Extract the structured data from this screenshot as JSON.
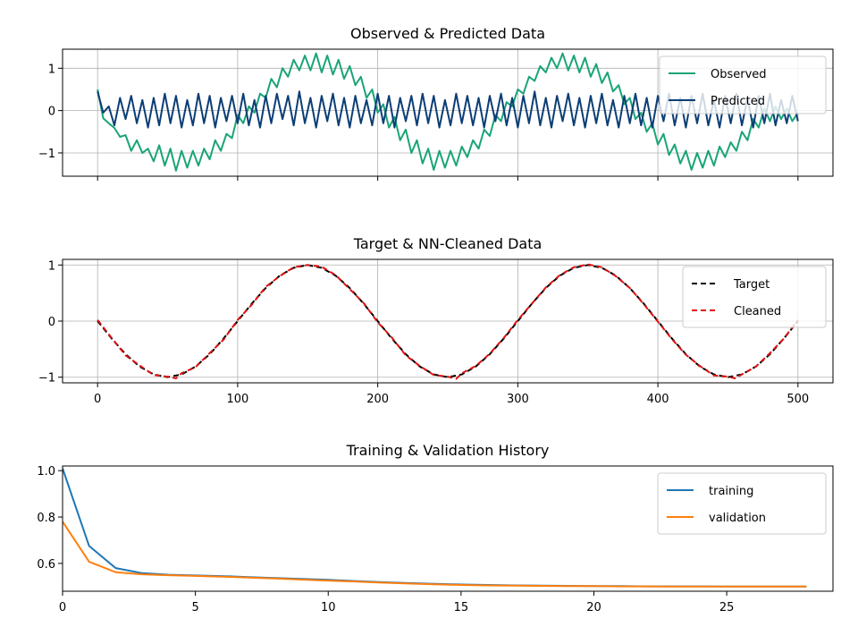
{
  "chart_data": [
    {
      "type": "line",
      "title": "Observed & Predicted Data",
      "xlabel": "",
      "ylabel": "",
      "xlim": [
        -25,
        525
      ],
      "ylim": [
        -1.55,
        1.45
      ],
      "xticks": [
        0,
        100,
        200,
        300,
        400,
        500
      ],
      "show_xtick_labels": false,
      "yticks": [
        -1,
        0,
        1
      ],
      "ytick_labels": [
        "−1",
        "0",
        "1"
      ],
      "grid": true,
      "legend_position": "upper right",
      "series": [
        {
          "name": "Observed",
          "color": "#1aa478",
          "style": "solid",
          "x": [
            0,
            4,
            8,
            12,
            16,
            20,
            24,
            28,
            32,
            36,
            40,
            44,
            48,
            52,
            56,
            60,
            64,
            68,
            72,
            76,
            80,
            84,
            88,
            92,
            96,
            100,
            104,
            108,
            112,
            116,
            120,
            124,
            128,
            132,
            136,
            140,
            144,
            148,
            152,
            156,
            160,
            164,
            168,
            172,
            176,
            180,
            184,
            188,
            192,
            196,
            200,
            204,
            208,
            212,
            216,
            220,
            224,
            228,
            232,
            236,
            240,
            244,
            248,
            252,
            256,
            260,
            264,
            268,
            272,
            276,
            280,
            284,
            288,
            292,
            296,
            300,
            304,
            308,
            312,
            316,
            320,
            324,
            328,
            332,
            336,
            340,
            344,
            348,
            352,
            356,
            360,
            364,
            368,
            372,
            376,
            380,
            384,
            388,
            392,
            396,
            400,
            404,
            408,
            412,
            416,
            420,
            424,
            428,
            432,
            436,
            440,
            444,
            448,
            452,
            456,
            460,
            464,
            468,
            472,
            476,
            480,
            484,
            488,
            492,
            496,
            500
          ],
          "values": [
            0.5,
            -0.18,
            -0.3,
            -0.41,
            -0.62,
            -0.58,
            -0.95,
            -0.7,
            -1.0,
            -0.9,
            -1.2,
            -0.82,
            -1.3,
            -0.9,
            -1.42,
            -0.95,
            -1.35,
            -0.95,
            -1.3,
            -0.9,
            -1.15,
            -0.7,
            -0.95,
            -0.55,
            -0.65,
            -0.1,
            -0.3,
            0.1,
            -0.05,
            0.4,
            0.3,
            0.75,
            0.55,
            1.0,
            0.8,
            1.2,
            0.95,
            1.3,
            0.95,
            1.35,
            0.9,
            1.3,
            0.85,
            1.2,
            0.75,
            1.05,
            0.6,
            0.8,
            0.3,
            0.5,
            -0.05,
            0.15,
            -0.4,
            -0.15,
            -0.7,
            -0.45,
            -1.0,
            -0.7,
            -1.25,
            -0.9,
            -1.4,
            -0.95,
            -1.35,
            -0.95,
            -1.3,
            -0.85,
            -1.1,
            -0.7,
            -0.9,
            -0.45,
            -0.6,
            -0.1,
            -0.25,
            0.2,
            0.1,
            0.5,
            0.4,
            0.8,
            0.7,
            1.05,
            0.9,
            1.25,
            1.0,
            1.35,
            0.95,
            1.3,
            0.9,
            1.25,
            0.8,
            1.1,
            0.65,
            0.9,
            0.45,
            0.6,
            0.15,
            0.3,
            -0.2,
            -0.05,
            -0.5,
            -0.3,
            -0.8,
            -0.55,
            -1.05,
            -0.8,
            -1.25,
            -0.95,
            -1.4,
            -1.0,
            -1.35,
            -0.95,
            -1.3,
            -0.85,
            -1.1,
            -0.75,
            -0.95,
            -0.5,
            -0.7,
            -0.2,
            -0.4,
            0.05,
            -0.25,
            0.1,
            -0.2,
            0.05,
            -0.25,
            -0.05
          ]
        },
        {
          "name": "Predicted",
          "color": "#0b3e75",
          "style": "solid",
          "x": [
            0,
            4,
            8,
            12,
            16,
            20,
            24,
            28,
            32,
            36,
            40,
            44,
            48,
            52,
            56,
            60,
            64,
            68,
            72,
            76,
            80,
            84,
            88,
            92,
            96,
            100,
            104,
            108,
            112,
            116,
            120,
            124,
            128,
            132,
            136,
            140,
            144,
            148,
            152,
            156,
            160,
            164,
            168,
            172,
            176,
            180,
            184,
            188,
            192,
            196,
            200,
            204,
            208,
            212,
            216,
            220,
            224,
            228,
            232,
            236,
            240,
            244,
            248,
            252,
            256,
            260,
            264,
            268,
            272,
            276,
            280,
            284,
            288,
            292,
            296,
            300,
            304,
            308,
            312,
            316,
            320,
            324,
            328,
            332,
            336,
            340,
            344,
            348,
            352,
            356,
            360,
            364,
            368,
            372,
            376,
            380,
            384,
            388,
            392,
            396,
            400,
            404,
            408,
            412,
            416,
            420,
            424,
            428,
            432,
            436,
            440,
            444,
            448,
            452,
            456,
            460,
            464,
            468,
            472,
            476,
            480,
            484,
            488,
            492,
            496,
            500
          ],
          "values": [
            0.45,
            -0.05,
            0.1,
            -0.35,
            0.3,
            -0.2,
            0.35,
            -0.3,
            0.25,
            -0.4,
            0.3,
            -0.35,
            0.4,
            -0.3,
            0.35,
            -0.4,
            0.25,
            -0.35,
            0.4,
            -0.3,
            0.35,
            -0.4,
            0.3,
            -0.25,
            0.35,
            -0.3,
            0.4,
            -0.35,
            0.25,
            -0.4,
            0.35,
            -0.3,
            0.4,
            -0.2,
            0.35,
            -0.35,
            0.45,
            -0.3,
            0.3,
            -0.4,
            0.35,
            -0.25,
            0.4,
            -0.35,
            0.3,
            -0.4,
            0.35,
            -0.3,
            0.25,
            -0.35,
            0.4,
            -0.3,
            0.35,
            -0.4,
            0.3,
            -0.25,
            0.35,
            -0.35,
            0.4,
            -0.3,
            0.35,
            -0.4,
            0.25,
            -0.35,
            0.4,
            -0.3,
            0.35,
            -0.35,
            0.3,
            -0.4,
            0.35,
            -0.25,
            0.4,
            -0.35,
            0.3,
            -0.4,
            0.35,
            -0.3,
            0.45,
            -0.35,
            0.3,
            -0.4,
            0.35,
            -0.25,
            0.4,
            -0.35,
            0.3,
            -0.4,
            0.35,
            -0.3,
            0.4,
            -0.35,
            0.25,
            -0.4,
            0.35,
            -0.3,
            0.4,
            -0.35,
            0.3,
            -0.4,
            0.35,
            -0.25,
            0.4,
            -0.35,
            0.3,
            -0.4,
            0.35,
            -0.3,
            0.4,
            -0.35,
            0.25,
            -0.4,
            0.35,
            -0.3,
            0.4,
            -0.35,
            0.3,
            -0.4,
            0.35,
            -0.3,
            0.4,
            -0.35,
            0.25,
            -0.3,
            0.35,
            -0.25
          ]
        }
      ]
    },
    {
      "type": "line",
      "title": "Target & NN-Cleaned Data",
      "xlabel": "",
      "ylabel": "",
      "xlim": [
        -25,
        525
      ],
      "ylim": [
        -1.1,
        1.1
      ],
      "xticks": [
        0,
        100,
        200,
        300,
        400,
        500
      ],
      "show_xtick_labels": true,
      "yticks": [
        -1,
        0,
        1
      ],
      "ytick_labels": [
        "−1",
        "0",
        "1"
      ],
      "grid": true,
      "legend_position": "upper right",
      "series": [
        {
          "name": "Target",
          "color": "#000000",
          "style": "dashed",
          "x": [
            0,
            10,
            20,
            30,
            40,
            50,
            60,
            70,
            80,
            90,
            100,
            110,
            120,
            130,
            140,
            150,
            160,
            170,
            180,
            190,
            200,
            210,
            220,
            230,
            240,
            250,
            260,
            270,
            280,
            290,
            300,
            310,
            320,
            330,
            340,
            350,
            360,
            370,
            380,
            390,
            400,
            410,
            420,
            430,
            440,
            450,
            460,
            470,
            480,
            490,
            500
          ],
          "values": [
            0.0,
            -0.31,
            -0.59,
            -0.81,
            -0.95,
            -1.0,
            -0.95,
            -0.81,
            -0.59,
            -0.31,
            0.0,
            0.31,
            0.59,
            0.81,
            0.95,
            1.0,
            0.95,
            0.81,
            0.59,
            0.31,
            0.0,
            -0.31,
            -0.59,
            -0.81,
            -0.95,
            -1.0,
            -0.95,
            -0.81,
            -0.59,
            -0.31,
            0.0,
            0.31,
            0.59,
            0.81,
            0.95,
            1.0,
            0.95,
            0.81,
            0.59,
            0.31,
            0.0,
            -0.31,
            -0.59,
            -0.81,
            -0.95,
            -1.0,
            -0.95,
            -0.81,
            -0.59,
            -0.31,
            0.0
          ]
        },
        {
          "name": "Cleaned",
          "color": "#e01010",
          "style": "dashed",
          "x": [
            0,
            10,
            20,
            30,
            40,
            50,
            56,
            60,
            70,
            80,
            90,
            100,
            110,
            120,
            130,
            140,
            150,
            160,
            170,
            180,
            190,
            200,
            210,
            220,
            230,
            240,
            250,
            256,
            260,
            270,
            280,
            290,
            300,
            310,
            320,
            330,
            340,
            350,
            360,
            370,
            380,
            390,
            400,
            410,
            420,
            430,
            440,
            450,
            455,
            460,
            470,
            480,
            490,
            500
          ],
          "values": [
            0.02,
            -0.3,
            -0.61,
            -0.79,
            -0.96,
            -0.99,
            -1.02,
            -0.93,
            -0.82,
            -0.57,
            -0.33,
            0.02,
            0.29,
            0.61,
            0.8,
            0.96,
            1.0,
            0.97,
            0.82,
            0.57,
            0.32,
            -0.02,
            -0.29,
            -0.61,
            -0.8,
            -0.96,
            -0.99,
            -1.03,
            -0.93,
            -0.8,
            -0.58,
            -0.3,
            0.02,
            0.31,
            0.6,
            0.82,
            0.96,
            1.01,
            0.96,
            0.8,
            0.59,
            0.3,
            -0.01,
            -0.32,
            -0.6,
            -0.8,
            -0.97,
            -0.99,
            -1.02,
            -0.95,
            -0.81,
            -0.57,
            -0.31,
            0.02
          ]
        }
      ]
    },
    {
      "type": "line",
      "title": "Training & Validation History",
      "xlabel": "",
      "ylabel": "",
      "xlim": [
        0,
        29
      ],
      "ylim": [
        0.48,
        1.02
      ],
      "xticks": [
        0,
        5,
        10,
        15,
        20,
        25
      ],
      "show_xtick_labels": true,
      "yticks": [
        0.6,
        0.8,
        1.0
      ],
      "ytick_labels": [
        "0.6",
        "0.8",
        "1.0"
      ],
      "grid": false,
      "legend_position": "upper right",
      "series": [
        {
          "name": "training",
          "color": "#1f77b4",
          "style": "solid",
          "x": [
            0,
            1,
            2,
            3,
            4,
            5,
            6,
            7,
            8,
            9,
            10,
            11,
            12,
            13,
            14,
            15,
            16,
            17,
            18,
            19,
            20,
            21,
            22,
            23,
            24,
            25,
            26,
            27,
            28
          ],
          "values": [
            1.01,
            0.675,
            0.58,
            0.558,
            0.551,
            0.548,
            0.545,
            0.541,
            0.537,
            0.533,
            0.529,
            0.524,
            0.519,
            0.515,
            0.512,
            0.509,
            0.507,
            0.505,
            0.504,
            0.503,
            0.502,
            0.502,
            0.501,
            0.501,
            0.501,
            0.5,
            0.5,
            0.5,
            0.5
          ]
        },
        {
          "name": "validation",
          "color": "#ff7f0e",
          "style": "solid",
          "x": [
            0,
            1,
            2,
            3,
            4,
            5,
            6,
            7,
            8,
            9,
            10,
            11,
            12,
            13,
            14,
            15,
            16,
            17,
            18,
            19,
            20,
            21,
            22,
            23,
            24,
            25,
            26,
            27,
            28
          ],
          "values": [
            0.78,
            0.607,
            0.562,
            0.553,
            0.549,
            0.546,
            0.543,
            0.539,
            0.535,
            0.53,
            0.526,
            0.522,
            0.517,
            0.513,
            0.51,
            0.507,
            0.505,
            0.504,
            0.503,
            0.502,
            0.502,
            0.501,
            0.501,
            0.5,
            0.5,
            0.5,
            0.5,
            0.5,
            0.5
          ]
        }
      ]
    }
  ]
}
